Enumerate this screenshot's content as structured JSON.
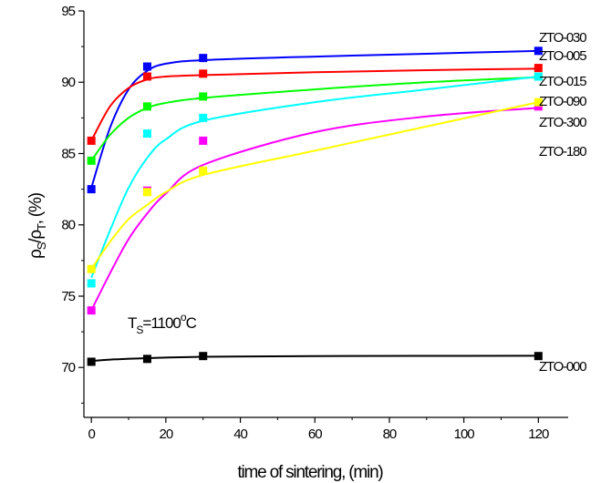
{
  "chart_data": {
    "type": "scatter",
    "xlabel": "time of sintering, (min)",
    "ylabel": "ρS/ρT, (%)",
    "ylabel_parts": {
      "rho1": "ρ",
      "sub1": "S",
      "slash": "/",
      "rho2": "ρ",
      "sub2": "T",
      "rest": ", (%)"
    },
    "annotation": {
      "base": "T",
      "sub": "S",
      "value": "=1100",
      "sup": "o",
      "unit": "C"
    },
    "xlim": [
      -2,
      128
    ],
    "ylim": [
      66.5,
      95
    ],
    "x_ticks": [
      0,
      20,
      40,
      60,
      80,
      100,
      120
    ],
    "y_ticks": [
      70,
      75,
      80,
      85,
      90,
      95
    ],
    "legend": "right-side labels",
    "x": [
      0,
      15,
      30,
      120
    ],
    "series": [
      {
        "name": "ZTO-030",
        "color": "#0000ff",
        "values": [
          82.5,
          91.1,
          91.7,
          92.2
        ],
        "fit": [
          [
            0,
            82.6
          ],
          [
            5,
            86.8
          ],
          [
            10,
            89.5
          ],
          [
            15,
            90.8
          ],
          [
            20,
            91.3
          ],
          [
            30,
            91.55
          ],
          [
            60,
            91.8
          ],
          [
            90,
            92.0
          ],
          [
            120,
            92.2
          ]
        ]
      },
      {
        "name": "ZTO-005",
        "color": "#ff0000",
        "values": [
          85.9,
          90.4,
          90.6,
          91.0
        ],
        "fit": [
          [
            0,
            85.9
          ],
          [
            5,
            88.3
          ],
          [
            10,
            89.6
          ],
          [
            15,
            90.2
          ],
          [
            20,
            90.4
          ],
          [
            30,
            90.5
          ],
          [
            60,
            90.7
          ],
          [
            90,
            90.85
          ],
          [
            120,
            90.95
          ]
        ]
      },
      {
        "name": "ZTO-015",
        "color": "#00ff00",
        "values": [
          84.5,
          88.3,
          89.0,
          90.4
        ],
        "fit": [
          [
            0,
            84.5
          ],
          [
            5,
            86.3
          ],
          [
            10,
            87.5
          ],
          [
            15,
            88.2
          ],
          [
            20,
            88.55
          ],
          [
            30,
            88.9
          ],
          [
            60,
            89.5
          ],
          [
            90,
            90.0
          ],
          [
            120,
            90.35
          ]
        ]
      },
      {
        "name": "ZTO-090",
        "color": "#00ffff",
        "values": [
          75.9,
          86.4,
          87.5,
          90.4
        ],
        "fit": [
          [
            0,
            76.3
          ],
          [
            5,
            79.6
          ],
          [
            10,
            82.6
          ],
          [
            15,
            84.7
          ],
          [
            20,
            86.0
          ],
          [
            30,
            87.3
          ],
          [
            60,
            88.6
          ],
          [
            90,
            89.5
          ],
          [
            120,
            90.4
          ]
        ]
      },
      {
        "name": "ZTO-300",
        "color": "#ff00ff",
        "values": [
          74.0,
          82.4,
          85.9,
          88.3
        ],
        "fit": [
          [
            0,
            74.0
          ],
          [
            5,
            76.6
          ],
          [
            10,
            79.0
          ],
          [
            15,
            80.8
          ],
          [
            20,
            82.2
          ],
          [
            30,
            84.2
          ],
          [
            60,
            86.5
          ],
          [
            90,
            87.6
          ],
          [
            120,
            88.2
          ]
        ]
      },
      {
        "name": "ZTO-180",
        "color": "#ffff00",
        "values": [
          76.9,
          82.3,
          83.8,
          88.6
        ],
        "fit": [
          [
            0,
            76.9
          ],
          [
            5,
            78.8
          ],
          [
            10,
            80.4
          ],
          [
            15,
            81.4
          ],
          [
            20,
            82.3
          ],
          [
            30,
            83.5
          ],
          [
            60,
            85.2
          ],
          [
            90,
            86.9
          ],
          [
            120,
            88.6
          ]
        ]
      },
      {
        "name": "ZTO-000",
        "color": "#000000",
        "values": [
          70.4,
          70.6,
          70.8,
          70.8
        ],
        "fit": [
          [
            0,
            70.45
          ],
          [
            5,
            70.55
          ],
          [
            15,
            70.65
          ],
          [
            30,
            70.75
          ],
          [
            60,
            70.8
          ],
          [
            120,
            70.82
          ]
        ]
      }
    ]
  }
}
